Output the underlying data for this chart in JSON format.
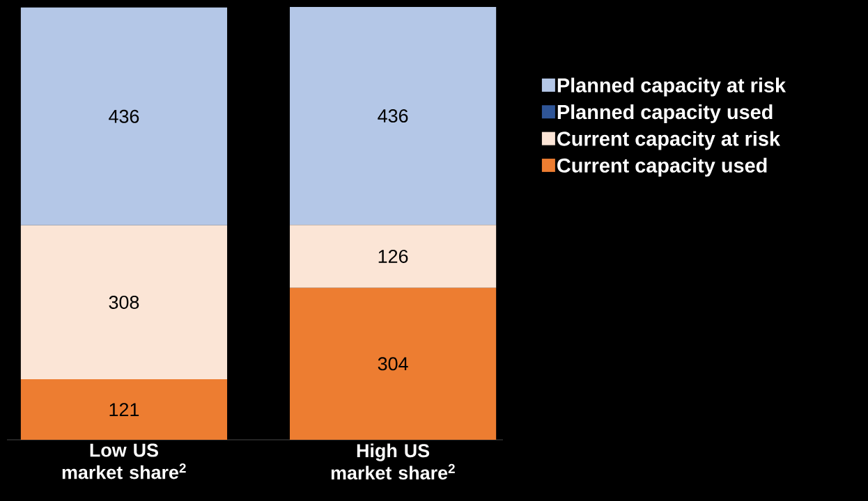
{
  "chart_data": {
    "type": "bar",
    "stacked": true,
    "categories": [
      "Low US market share$^{2}$",
      "High US market share$^{2}$"
    ],
    "series": [
      {
        "name": "Current capacity used",
        "color": "#ed7d31",
        "values": [
          121,
          304
        ],
        "value_labels": [
          "121",
          "304"
        ]
      },
      {
        "name": "Current capacity at risk",
        "color": "#fbe5d6",
        "values": [
          308,
          126
        ],
        "value_labels": [
          "308",
          "126"
        ]
      },
      {
        "name": "Planned capacity used",
        "color": "#2f5597",
        "values": [
          0,
          0
        ],
        "value_labels": [
          null,
          null
        ]
      },
      {
        "name": "Planned capacity at risk",
        "color": "#b4c7e7",
        "values": [
          436,
          436
        ],
        "value_labels": [
          "436",
          "436"
        ]
      }
    ],
    "legend": "right"
  }
}
